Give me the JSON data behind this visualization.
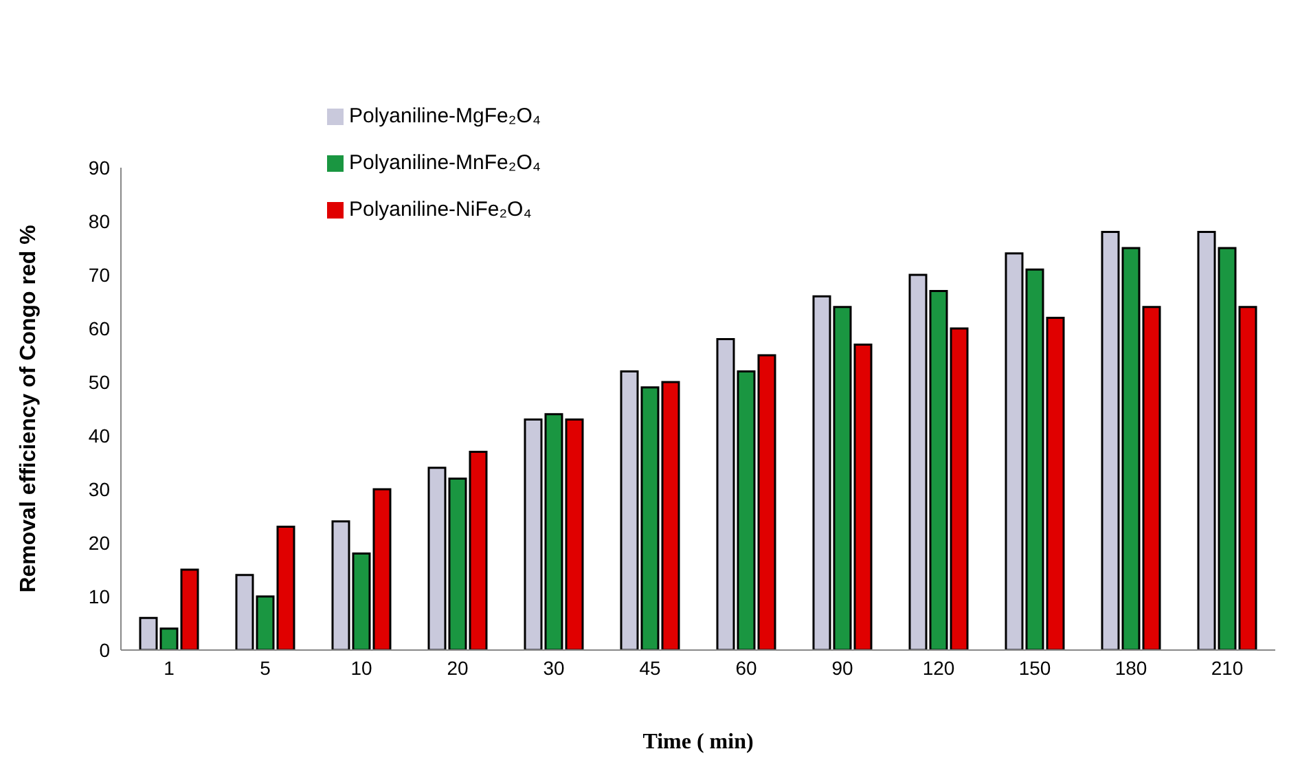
{
  "chart_data": {
    "type": "bar",
    "xlabel": "Time ( min)",
    "ylabel": "Removal efficiency of Congo red %",
    "categories": [
      "1",
      "5",
      "10",
      "20",
      "30",
      "45",
      "60",
      "90",
      "120",
      "150",
      "180",
      "210"
    ],
    "series": [
      {
        "name": "Polyaniline-MgFe₂O₄",
        "color": "#c9c9dc",
        "values": [
          6,
          14,
          24,
          34,
          43,
          52,
          58,
          66,
          70,
          74,
          78,
          78
        ]
      },
      {
        "name": "Polyaniline-MnFe₂O₄",
        "color": "#1a9641",
        "values": [
          4,
          10,
          18,
          32,
          44,
          49,
          52,
          64,
          67,
          71,
          75,
          75
        ]
      },
      {
        "name": "Polyaniline-NiFe₂O₄",
        "color": "#e00000",
        "values": [
          15,
          23,
          30,
          37,
          43,
          50,
          55,
          57,
          60,
          62,
          64,
          64
        ]
      }
    ],
    "ylim": [
      0,
      90
    ],
    "yticks": [
      0,
      10,
      20,
      30,
      40,
      50,
      60,
      70,
      80,
      90
    ],
    "grid": false,
    "legend": "top left"
  }
}
